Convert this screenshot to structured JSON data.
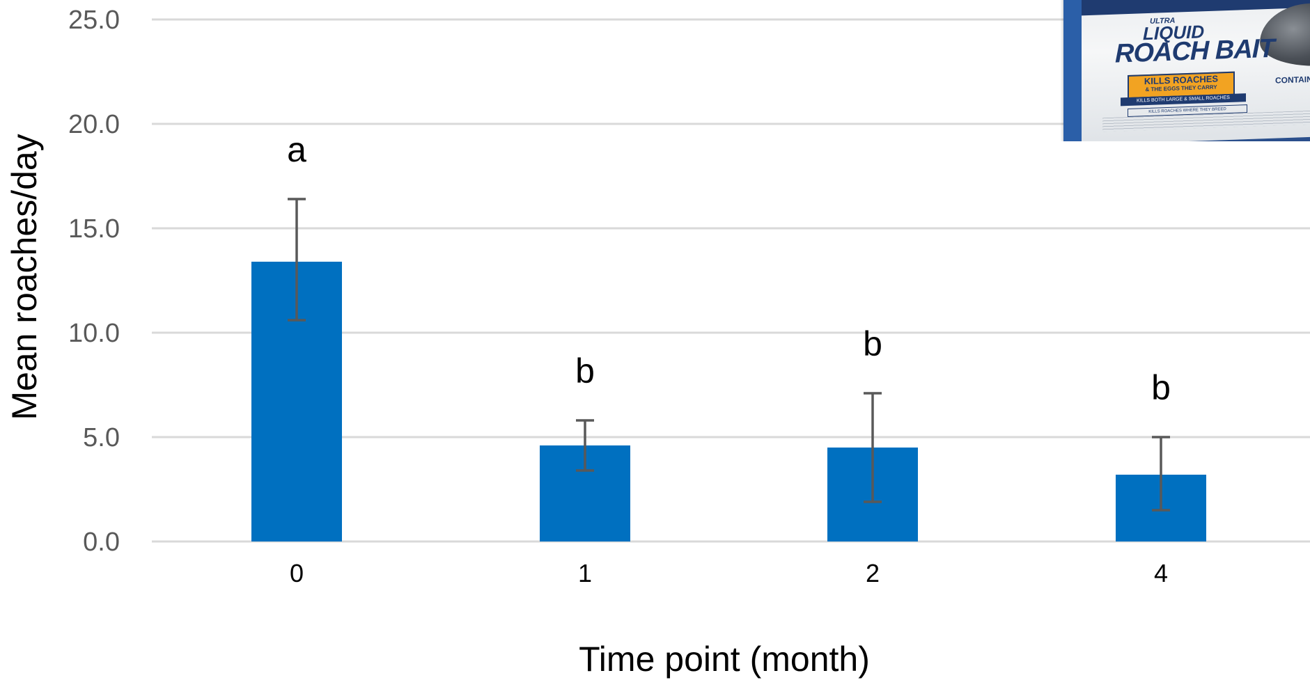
{
  "chart_data": {
    "type": "bar",
    "categories": [
      "0",
      "1",
      "2",
      "4"
    ],
    "values": [
      13.4,
      4.6,
      4.5,
      3.2
    ],
    "error_upper": [
      16.4,
      5.8,
      7.1,
      5.0
    ],
    "error_lower": [
      10.6,
      3.4,
      1.9,
      1.5
    ],
    "significance_letters": [
      "a",
      "b",
      "b",
      "b"
    ],
    "xlabel": "Time point (month)",
    "ylabel": "Mean roaches/day",
    "ylim": [
      0,
      25
    ],
    "yticks": [
      "0.0",
      "5.0",
      "10.0",
      "15.0",
      "20.0",
      "25.0"
    ],
    "grid": true,
    "legend": "none",
    "bar_color": "#0070c0",
    "error_bar_color": "#595959",
    "gridline_color": "#d9d9d9"
  },
  "inset_image": {
    "description_icon": "roach-bait-package-image",
    "text_ultra": "ULTRA",
    "text_liquid": "LIQUID",
    "text_roach_bait": "ROACH BAIT",
    "text_kills": "KILLS ROACHES",
    "text_eggs": "& THE EGGS THEY CARRY",
    "text_strip": "KILLS BOTH LARGE & SMALL ROACHES",
    "text_strip2": "KILLS ROACHES WHERE THEY BREED",
    "text_contains": "CONTAINS"
  }
}
